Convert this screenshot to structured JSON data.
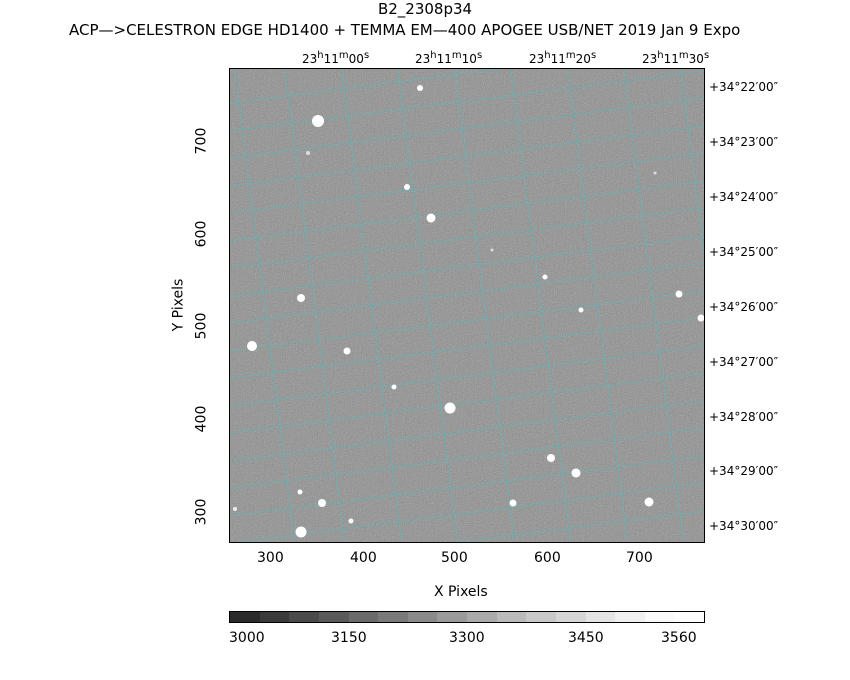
{
  "header": {
    "title": "B2_2308p34",
    "subtitle": "ACP—>CELESTRON EDGE HD1400 + TEMMA EM—400 APOGEE USB/NET   2019 Jan  9    Expo"
  },
  "axes": {
    "xlabel": "X Pixels",
    "ylabel": "Y Pixels",
    "x_ticks": [
      "300",
      "400",
      "500",
      "600",
      "700"
    ],
    "y_ticks": [
      "300",
      "400",
      "500",
      "600",
      "700"
    ],
    "ra_labels": [
      {
        "h": "23",
        "m": "11",
        "s": "00"
      },
      {
        "h": "23",
        "m": "11",
        "s": "10"
      },
      {
        "h": "23",
        "m": "11",
        "s": "20"
      },
      {
        "h": "23",
        "m": "11",
        "s": "30"
      }
    ],
    "dec_labels": [
      "+34°22′00″",
      "+34°23′00″",
      "+34°24′00″",
      "+34°25′00″",
      "+34°26′00″",
      "+34°27′00″",
      "+34°28′00″",
      "+34°29′00″",
      "+34°30′00″"
    ]
  },
  "colorbar": {
    "labels": [
      "3000",
      "3150",
      "3300",
      "3450",
      "3560"
    ],
    "colors": [
      "#2a2a2a",
      "#3a3a3a",
      "#4a4a4a",
      "#5a5a5a",
      "#6a6a6a",
      "#7a7a7a",
      "#8a8a8a",
      "#9a9a9a",
      "#aaaaaa",
      "#bababa",
      "#c8c8c8",
      "#d6d6d6",
      "#e4e4e4",
      "#f0f0f0",
      "#fafafa",
      "#ffffff"
    ]
  },
  "image": {
    "background": "#8c8c8c",
    "grid_color": "#35c8cf"
  }
}
